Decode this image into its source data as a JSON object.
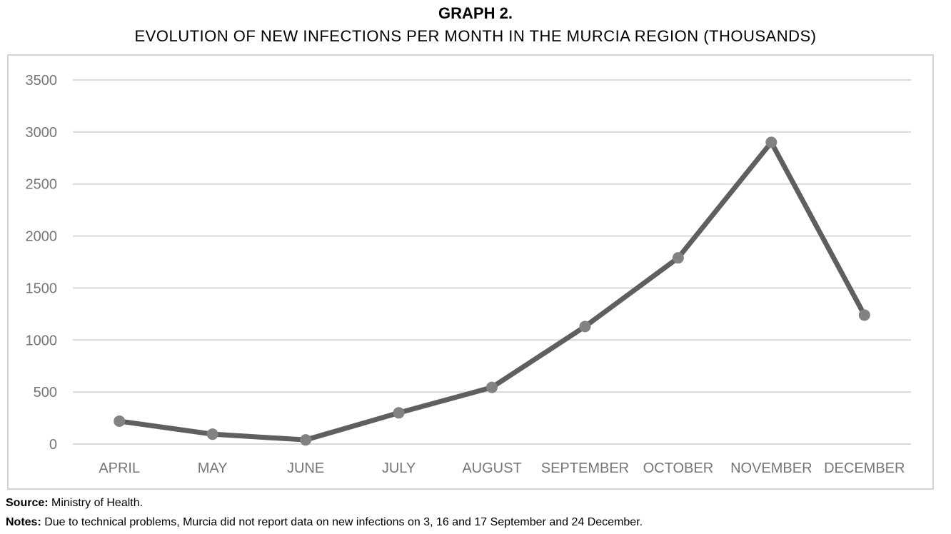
{
  "header": {
    "title": "GRAPH 2.",
    "subtitle": "EVOLUTION OF NEW INFECTIONS PER MONTH IN THE MURCIA REGION (THOUSANDS)"
  },
  "footer": {
    "source_label": "Source:",
    "source_text": " Ministry of Health.",
    "notes_label": "Notes:",
    "notes_text": " Due to technical problems, Murcia did not report data on new infections on 3, 16 and 17 September and 24 December."
  },
  "colors": {
    "line": "#5f5f5f",
    "marker": "#828282",
    "grid": "#d9d9d9",
    "tick_text": "#767676"
  },
  "chart_data": {
    "type": "line",
    "title": "EVOLUTION OF NEW INFECTIONS PER MONTH IN THE MURCIA REGION (THOUSANDS)",
    "xlabel": "",
    "ylabel": "",
    "categories": [
      "APRIL",
      "MAY",
      "JUNE",
      "JULY",
      "AUGUST",
      "SEPTEMBER",
      "OCTOBER",
      "NOVEMBER",
      "DECEMBER"
    ],
    "series": [
      {
        "values": [
          220,
          95,
          40,
          300,
          545,
          1130,
          1790,
          2900,
          1240
        ]
      }
    ],
    "ylim": [
      0,
      3500
    ],
    "yticks": [
      0,
      500,
      1000,
      1500,
      2000,
      2500,
      3000,
      3500
    ],
    "grid": true,
    "legend": "none",
    "markers": true
  }
}
